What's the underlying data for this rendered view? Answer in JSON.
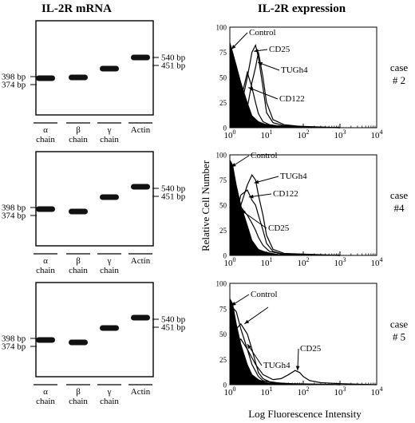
{
  "titles": {
    "left": "IL-2R mRNA",
    "right": "IL-2R expression"
  },
  "gel": {
    "lane_labels": [
      {
        "top": "α",
        "bottom": "chain"
      },
      {
        "top": "β",
        "bottom": "chain"
      },
      {
        "top": "γ",
        "bottom": "chain"
      },
      {
        "top": "Actin",
        "bottom": ""
      }
    ],
    "marker_left": [
      "398 bp",
      "374 bp"
    ],
    "marker_right": [
      "540 bp",
      "451 bp"
    ]
  },
  "y_axis_label": "Relative Cell Number",
  "x_axis_label": "Log Fluorescence Intensity",
  "cases": [
    {
      "line1": "case",
      "line2": "# 2"
    },
    {
      "line1": "case",
      "line2": "#4"
    },
    {
      "line1": "case",
      "line2": "# 5"
    }
  ],
  "chart_data": [
    {
      "type": "area",
      "panel": "case # 2",
      "xscale": "log",
      "xlim": [
        1,
        10000
      ],
      "ylim": [
        0,
        100
      ],
      "xticks": [
        "10^0",
        "10^1",
        "10^2",
        "10^3",
        "10^4"
      ],
      "yticks": [
        0,
        25,
        50,
        75,
        100
      ],
      "series": [
        {
          "name": "Control",
          "filled": true,
          "x": [
            1,
            1.2,
            1.5,
            2,
            3,
            4,
            6,
            10,
            20,
            100,
            1000,
            10000
          ],
          "y": [
            85,
            75,
            62,
            45,
            25,
            12,
            6,
            3,
            2,
            1,
            0,
            0
          ]
        },
        {
          "name": "CD122",
          "x": [
            1,
            1.5,
            2,
            3,
            4,
            5,
            6,
            8,
            12,
            30,
            1000
          ],
          "y": [
            2,
            10,
            28,
            55,
            40,
            25,
            14,
            6,
            3,
            1,
            0
          ]
        },
        {
          "name": "CD25",
          "x": [
            1,
            1.5,
            2,
            3,
            4,
            5,
            6,
            8,
            10,
            15,
            30,
            1000
          ],
          "y": [
            1,
            5,
            20,
            50,
            75,
            82,
            70,
            40,
            15,
            5,
            2,
            0
          ]
        },
        {
          "name": "TUGh4",
          "x": [
            1,
            2,
            3,
            4,
            5,
            6,
            8,
            10,
            15,
            30,
            100,
            1000
          ],
          "y": [
            1,
            5,
            20,
            45,
            60,
            75,
            50,
            25,
            8,
            3,
            1,
            0
          ]
        }
      ]
    },
    {
      "type": "area",
      "panel": "case #4",
      "xscale": "log",
      "xlim": [
        1,
        10000
      ],
      "ylim": [
        0,
        100
      ],
      "xticks": [
        "10^0",
        "10^1",
        "10^2",
        "10^3",
        "10^4"
      ],
      "yticks": [
        0,
        25,
        50,
        75,
        100
      ],
      "series": [
        {
          "name": "Control",
          "filled": true,
          "x": [
            1,
            1.2,
            1.5,
            2,
            3,
            4,
            6,
            10,
            20,
            100,
            10000
          ],
          "y": [
            95,
            90,
            70,
            50,
            30,
            15,
            6,
            3,
            1,
            0,
            0
          ]
        },
        {
          "name": "CD25",
          "x": [
            1,
            1.5,
            2,
            3,
            4,
            5,
            6,
            8,
            12,
            30,
            1000
          ],
          "y": [
            50,
            52,
            48,
            40,
            32,
            25,
            18,
            10,
            4,
            1,
            0
          ]
        },
        {
          "name": "CD122",
          "x": [
            1,
            1.5,
            2,
            3,
            4,
            5,
            6,
            8,
            10,
            15,
            30,
            1000
          ],
          "y": [
            20,
            40,
            60,
            65,
            55,
            50,
            40,
            25,
            12,
            4,
            1,
            0
          ]
        },
        {
          "name": "TUGh4",
          "x": [
            1,
            1.5,
            2,
            3,
            4,
            5,
            6,
            8,
            10,
            15,
            30,
            1000
          ],
          "y": [
            10,
            30,
            50,
            70,
            80,
            75,
            60,
            40,
            20,
            6,
            2,
            0
          ]
        }
      ]
    },
    {
      "type": "area",
      "panel": "case # 5",
      "xscale": "log",
      "xlim": [
        1,
        10000
      ],
      "ylim": [
        0,
        100
      ],
      "xticks": [
        "10^0",
        "10^1",
        "10^2",
        "10^3",
        "10^4"
      ],
      "yticks": [
        0,
        25,
        50,
        75,
        100
      ],
      "series": [
        {
          "name": "Control",
          "filled": true,
          "x": [
            1,
            1.2,
            1.5,
            2,
            3,
            4,
            6,
            10,
            20,
            100,
            10000
          ],
          "y": [
            85,
            80,
            60,
            40,
            20,
            10,
            5,
            2,
            1,
            0,
            0
          ]
        },
        {
          "name": "",
          "x": [
            1,
            1.2,
            1.5,
            2,
            3,
            4,
            6,
            8,
            15,
            50,
            1000
          ],
          "y": [
            60,
            76,
            72,
            55,
            35,
            20,
            8,
            4,
            2,
            1,
            0
          ]
        },
        {
          "name": "TUGh4",
          "x": [
            1,
            1.5,
            2,
            3,
            4,
            5,
            6,
            8,
            12,
            30,
            1000
          ],
          "y": [
            30,
            55,
            60,
            50,
            35,
            22,
            12,
            6,
            3,
            1,
            0
          ]
        },
        {
          "name": "CD25",
          "x": [
            1,
            1.5,
            2,
            3,
            5,
            8,
            15,
            25,
            40,
            60,
            80,
            100,
            150,
            300,
            1000,
            10000
          ],
          "y": [
            20,
            40,
            45,
            35,
            20,
            10,
            5,
            6,
            10,
            14,
            12,
            8,
            4,
            2,
            1,
            0
          ]
        }
      ]
    }
  ]
}
